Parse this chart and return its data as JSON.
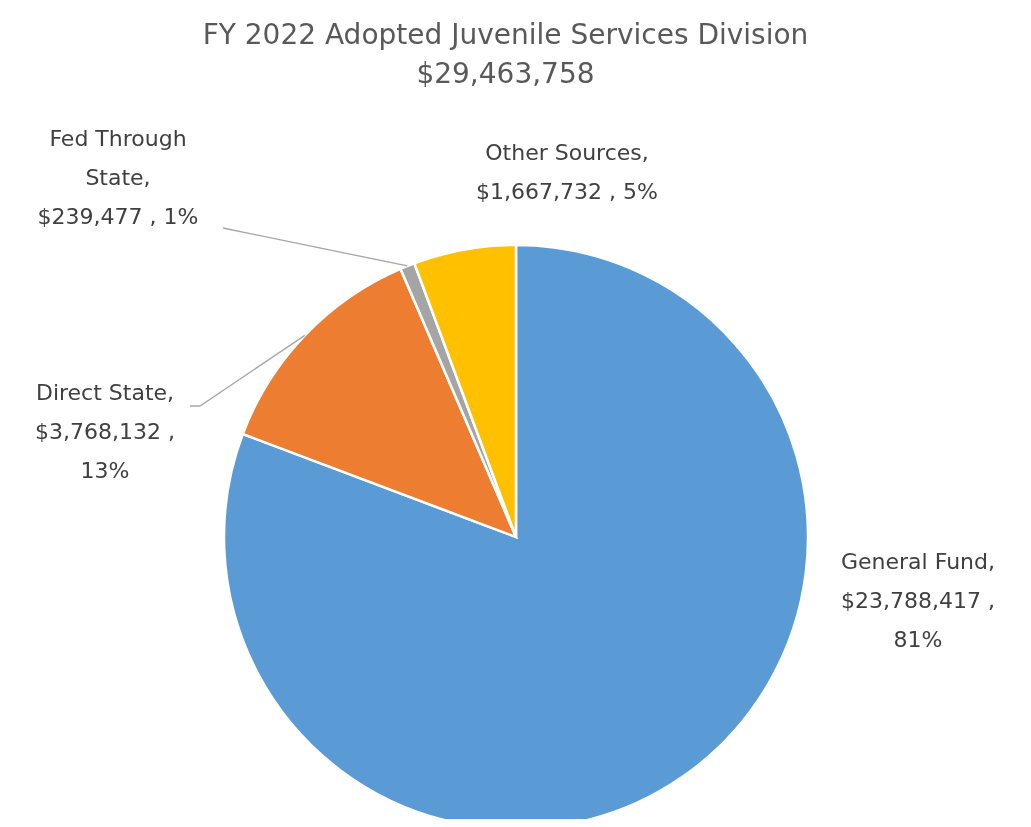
{
  "chart_data": {
    "type": "pie",
    "title": "FY 2022 Adopted Juvenile Services Division",
    "subtitle": "$29,463,758",
    "categories": [
      "General Fund",
      "Direct State",
      "Fed Through State",
      "Other Sources"
    ],
    "values": [
      23788417,
      3768132,
      239477,
      1667732
    ],
    "colors": [
      "#5b9bd5",
      "#ed7d31",
      "#a5a5a5",
      "#ffc000"
    ],
    "value_labels": [
      ", $23,788,417 , 81%",
      ", $3,768,132 , 13%",
      ", $239,477 , 1%",
      ", $1,667,732 , 5%"
    ],
    "legend": false
  }
}
